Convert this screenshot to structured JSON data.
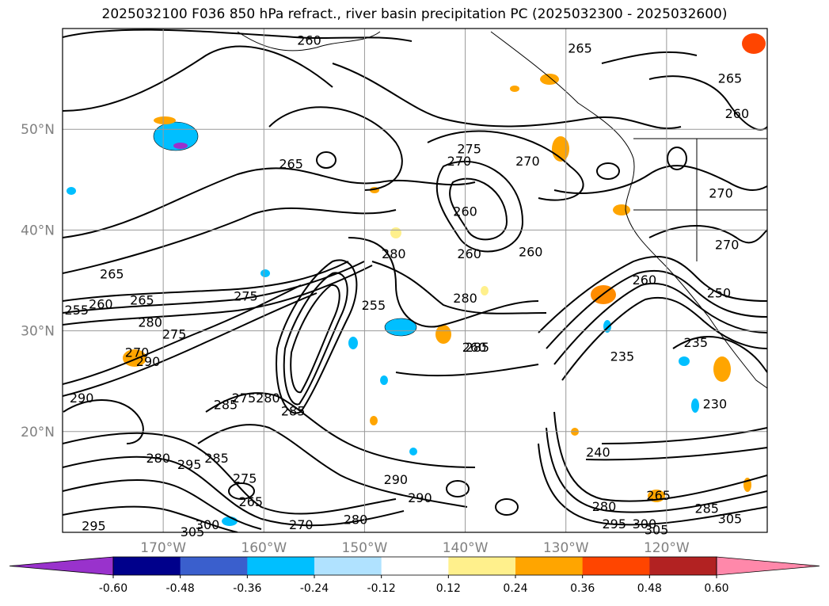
{
  "chart_data": {
    "type": "heatmap",
    "title": "2025032100 F036 850 hPa refract., river basin precipitation PC (2025032300 - 2025032600)",
    "lat_ticks": [
      "50°N",
      "40°N",
      "30°N",
      "20°N"
    ],
    "lat_values": [
      50,
      40,
      30,
      20
    ],
    "lon_ticks": [
      "170°W",
      "160°W",
      "150°W",
      "140°W",
      "130°W",
      "120°W"
    ],
    "lon_values": [
      -170,
      -160,
      -150,
      -140,
      -130,
      -120
    ],
    "extent": {
      "lon_min": -180,
      "lon_max": -110,
      "lat_min": 10,
      "lat_max": 60
    },
    "grid": true,
    "colorbar": {
      "extend": "both",
      "ticks": [
        "-0.60",
        "-0.48",
        "-0.36",
        "-0.24",
        "-0.12",
        "0.12",
        "0.24",
        "0.36",
        "0.48",
        "0.60"
      ],
      "bounds": [
        -0.6,
        -0.48,
        -0.36,
        -0.24,
        -0.12,
        0.12,
        0.24,
        0.36,
        0.48,
        0.6
      ],
      "colors": [
        "#9932cc",
        "#00008b",
        "#3a5fcd",
        "#00bfff",
        "#b0e2ff",
        "#ffffff",
        "#fff08c",
        "#ffa500",
        "#ff4500",
        "#b22222",
        "#ff88aa"
      ]
    },
    "contour_labels": [
      {
        "text": "260",
        "lon": -155.5,
        "lat": 58.8
      },
      {
        "text": "265",
        "lon": -128.6,
        "lat": 58.0
      },
      {
        "text": "265",
        "lon": -113.7,
        "lat": 55.0
      },
      {
        "text": "260",
        "lon": -113.0,
        "lat": 51.5
      },
      {
        "text": "275",
        "lon": -139.6,
        "lat": 48.0
      },
      {
        "text": "270",
        "lon": -140.6,
        "lat": 46.8
      },
      {
        "text": "270",
        "lon": -133.8,
        "lat": 46.8
      },
      {
        "text": "265",
        "lon": -157.3,
        "lat": 46.5
      },
      {
        "text": "270",
        "lon": -114.6,
        "lat": 43.6
      },
      {
        "text": "260",
        "lon": -140.0,
        "lat": 41.8
      },
      {
        "text": "270",
        "lon": -114.0,
        "lat": 38.5
      },
      {
        "text": "280",
        "lon": -147.1,
        "lat": 37.6
      },
      {
        "text": "260",
        "lon": -139.6,
        "lat": 37.6
      },
      {
        "text": "260",
        "lon": -133.5,
        "lat": 37.8
      },
      {
        "text": "265",
        "lon": -175.1,
        "lat": 35.6
      },
      {
        "text": "260",
        "lon": -122.2,
        "lat": 35.0
      },
      {
        "text": "250",
        "lon": -114.8,
        "lat": 33.7
      },
      {
        "text": "255",
        "lon": -178.6,
        "lat": 32.0
      },
      {
        "text": "260",
        "lon": -176.2,
        "lat": 32.6
      },
      {
        "text": "265",
        "lon": -172.1,
        "lat": 33.0
      },
      {
        "text": "275",
        "lon": -161.8,
        "lat": 33.4
      },
      {
        "text": "280",
        "lon": -140.0,
        "lat": 33.2
      },
      {
        "text": "255",
        "lon": -149.1,
        "lat": 32.5
      },
      {
        "text": "280",
        "lon": -171.3,
        "lat": 30.8
      },
      {
        "text": "275",
        "lon": -168.9,
        "lat": 29.6
      },
      {
        "text": "235",
        "lon": -117.1,
        "lat": 28.8
      },
      {
        "text": "235",
        "lon": -124.4,
        "lat": 27.4
      },
      {
        "text": "285",
        "lon": -138.8,
        "lat": 28.3
      },
      {
        "text": "260",
        "lon": -139.1,
        "lat": 28.3
      },
      {
        "text": "270",
        "lon": -172.6,
        "lat": 27.8
      },
      {
        "text": "290",
        "lon": -171.5,
        "lat": 26.9
      },
      {
        "text": "290",
        "lon": -178.1,
        "lat": 23.3
      },
      {
        "text": "230",
        "lon": -115.2,
        "lat": 22.7
      },
      {
        "text": "285",
        "lon": -163.8,
        "lat": 22.6
      },
      {
        "text": "275",
        "lon": -162.0,
        "lat": 23.3
      },
      {
        "text": "280",
        "lon": -159.6,
        "lat": 23.3
      },
      {
        "text": "285",
        "lon": -157.1,
        "lat": 22.0
      },
      {
        "text": "240",
        "lon": -126.8,
        "lat": 17.9
      },
      {
        "text": "285",
        "lon": -164.7,
        "lat": 17.3
      },
      {
        "text": "295",
        "lon": -167.4,
        "lat": 16.7
      },
      {
        "text": "280",
        "lon": -170.5,
        "lat": 17.3
      },
      {
        "text": "290",
        "lon": -146.9,
        "lat": 15.2
      },
      {
        "text": "275",
        "lon": -161.9,
        "lat": 15.3
      },
      {
        "text": "290",
        "lon": -144.5,
        "lat": 13.4
      },
      {
        "text": "265",
        "lon": -161.3,
        "lat": 13.0
      },
      {
        "text": "265",
        "lon": -120.8,
        "lat": 13.6
      },
      {
        "text": "280",
        "lon": -126.2,
        "lat": 12.5
      },
      {
        "text": "285",
        "lon": -116.0,
        "lat": 12.3
      },
      {
        "text": "280",
        "lon": -150.9,
        "lat": 11.2
      },
      {
        "text": "305",
        "lon": -113.7,
        "lat": 11.3
      },
      {
        "text": "270",
        "lon": -156.3,
        "lat": 10.7
      },
      {
        "text": "295",
        "lon": -176.9,
        "lat": 10.6
      },
      {
        "text": "300",
        "lon": -165.6,
        "lat": 10.7
      },
      {
        "text": "305",
        "lon": -167.1,
        "lat": 10.0
      },
      {
        "text": "295",
        "lon": -125.2,
        "lat": 10.8
      },
      {
        "text": "300",
        "lon": -122.2,
        "lat": 10.8
      },
      {
        "text": "305",
        "lon": -121.0,
        "lat": 10.2
      }
    ]
  }
}
